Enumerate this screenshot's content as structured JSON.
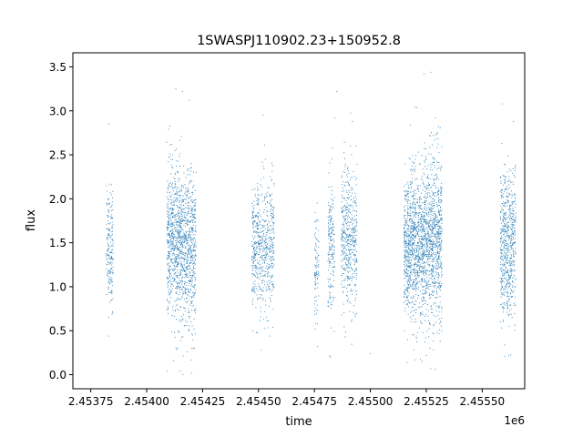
{
  "chart_data": {
    "type": "scatter",
    "title": "1SWASPJ110902.23+150952.8",
    "xlabel": "time",
    "ylabel": "flux",
    "x_offset_label": "1e6",
    "xlim": [
      2.45367,
      2.45569
    ],
    "ylim": [
      -0.16,
      3.66
    ],
    "x_ticks": [
      2.45375,
      2.454,
      2.45425,
      2.4545,
      2.45475,
      2.455,
      2.45525,
      2.4555
    ],
    "x_tick_labels": [
      "2.45375",
      "2.45400",
      "2.45425",
      "2.45450",
      "2.45475",
      "2.45500",
      "2.45525",
      "2.45550"
    ],
    "y_ticks": [
      0.0,
      0.5,
      1.0,
      1.5,
      2.0,
      2.5,
      3.0,
      3.5
    ],
    "y_tick_labels": [
      "0.0",
      "0.5",
      "1.0",
      "1.5",
      "2.0",
      "2.5",
      "3.0",
      "3.5"
    ],
    "grid": false,
    "series": [
      {
        "color": "#1f77b4",
        "segments": [
          {
            "x_start": 2.45382,
            "x_end": 2.45385,
            "center": 1.45,
            "spread": 0.33,
            "density": 1.0
          },
          {
            "x_start": 2.45409,
            "x_end": 2.45416,
            "center": 1.5,
            "spread": 0.42,
            "density": 2.2
          },
          {
            "x_start": 2.45416,
            "x_end": 2.45422,
            "center": 1.4,
            "spread": 0.42,
            "density": 2.0
          },
          {
            "x_start": 2.45447,
            "x_end": 2.45457,
            "center": 1.42,
            "spread": 0.38,
            "density": 1.3
          },
          {
            "x_start": 2.45475,
            "x_end": 2.45477,
            "center": 1.25,
            "spread": 0.28,
            "density": 0.4
          },
          {
            "x_start": 2.45481,
            "x_end": 2.45484,
            "center": 1.5,
            "spread": 0.38,
            "density": 1.0
          },
          {
            "x_start": 2.45487,
            "x_end": 2.45494,
            "center": 1.55,
            "spread": 0.4,
            "density": 1.4
          },
          {
            "x_start": 2.45515,
            "x_end": 2.45524,
            "center": 1.45,
            "spread": 0.42,
            "density": 2.4
          },
          {
            "x_start": 2.45524,
            "x_end": 2.45532,
            "center": 1.55,
            "spread": 0.46,
            "density": 2.4
          },
          {
            "x_start": 2.45558,
            "x_end": 2.45563,
            "center": 1.45,
            "spread": 0.42,
            "density": 1.9
          },
          {
            "x_start": 2.45563,
            "x_end": 2.45565,
            "center": 1.5,
            "spread": 0.4,
            "density": 1.2
          }
        ],
        "outliers": [
          [
            2.45383,
            2.85
          ],
          [
            2.45383,
            0.44
          ],
          [
            2.45411,
            2.62
          ],
          [
            2.45412,
            0.16
          ],
          [
            2.45413,
            3.25
          ],
          [
            2.45416,
            3.22
          ],
          [
            2.45415,
            0.04
          ],
          [
            2.45419,
            3.12
          ],
          [
            2.4542,
            0.02
          ],
          [
            2.45418,
            0.26
          ],
          [
            2.45452,
            2.95
          ],
          [
            2.45449,
            0.48
          ],
          [
            2.45455,
            0.44
          ],
          [
            2.45482,
            0.2
          ],
          [
            2.45485,
            3.22
          ],
          [
            2.45484,
            2.92
          ],
          [
            2.45492,
            2.88
          ],
          [
            2.455,
            0.24
          ],
          [
            2.4552,
            3.04
          ],
          [
            2.45524,
            3.42
          ],
          [
            2.45527,
            3.44
          ],
          [
            2.45527,
            0.07
          ],
          [
            2.45529,
            0.06
          ],
          [
            2.4552,
            0.17
          ],
          [
            2.45525,
            0.22
          ],
          [
            2.45559,
            3.08
          ],
          [
            2.4556,
            0.21
          ],
          [
            2.45564,
            2.88
          ]
        ]
      }
    ]
  }
}
